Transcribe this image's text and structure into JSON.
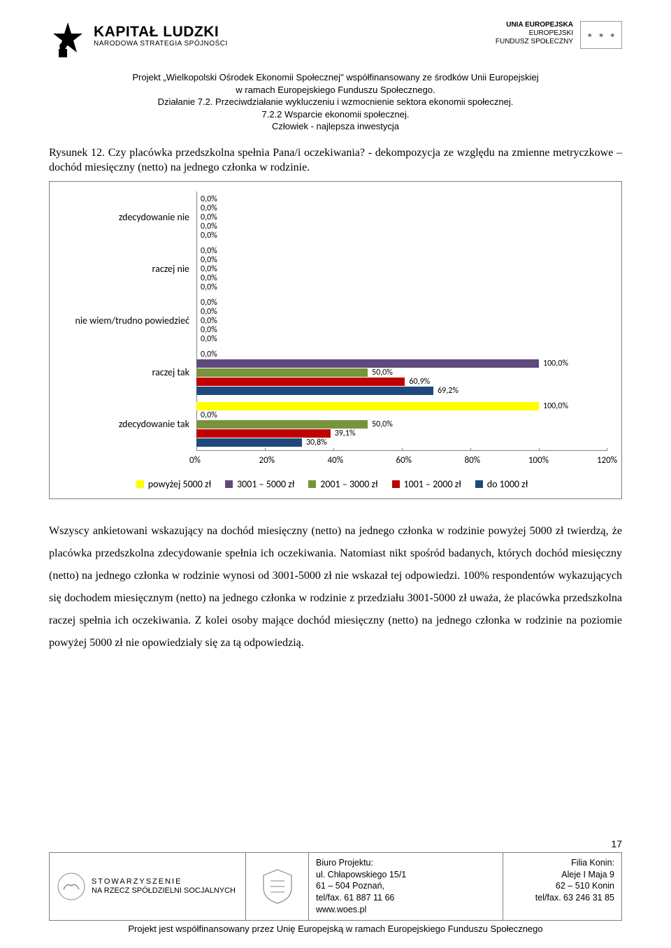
{
  "header": {
    "kl": "KAPITAŁ LUDZKI",
    "nss": "NARODOWA STRATEGIA SPÓJNOŚCI",
    "ue_line1": "UNIA EUROPEJSKA",
    "ue_line2": "EUROPEJSKI",
    "ue_line3": "FUNDUSZ SPOŁECZNY"
  },
  "project_lines": [
    "Projekt „Wielkopolski Ośrodek Ekonomii Społecznej\" współfinansowany ze środków Unii Europejskiej",
    "w ramach Europejskiego Funduszu Społecznego.",
    "Działanie 7.2. Przeciwdziałanie wykluczeniu i wzmocnienie sektora ekonomii społecznej.",
    "7.2.2 Wsparcie ekonomii społecznej.",
    "Człowiek - najlepsza inwestycja"
  ],
  "figcap": "Rysunek 12. Czy placówka przedszkolna spełnia Pana/i oczekiwania? - dekompozycja ze względu na zmienne metryczkowe – dochód miesięczny (netto) na jednego członka w rodzinie.",
  "chart": {
    "x_max_pct": 120,
    "series": [
      {
        "name": "powyżej 5000 zł",
        "color": "#ffff00"
      },
      {
        "name": "3001 – 5000 zł",
        "color": "#604a7b"
      },
      {
        "name": "2001 – 3000 zł",
        "color": "#77933c"
      },
      {
        "name": "1001 – 2000 zł",
        "color": "#c00000"
      },
      {
        "name": "do 1000 zł",
        "color": "#1f497d"
      }
    ],
    "categories": [
      {
        "label": "zdecydowanie nie",
        "bars": [
          {
            "value": 0.0,
            "label": "0,0%"
          },
          {
            "value": 0.0,
            "label": "0,0%"
          },
          {
            "value": 0.0,
            "label": "0,0%"
          },
          {
            "value": 0.0,
            "label": "0,0%"
          },
          {
            "value": 0.0,
            "label": "0,0%"
          }
        ]
      },
      {
        "label": "raczej nie",
        "bars": [
          {
            "value": 0.0,
            "label": "0,0%"
          },
          {
            "value": 0.0,
            "label": "0,0%"
          },
          {
            "value": 0.0,
            "label": "0,0%"
          },
          {
            "value": 0.0,
            "label": "0,0%"
          },
          {
            "value": 0.0,
            "label": "0,0%"
          }
        ]
      },
      {
        "label": "nie wiem/trudno powiedzieć",
        "bars": [
          {
            "value": 0.0,
            "label": "0,0%"
          },
          {
            "value": 0.0,
            "label": "0,0%"
          },
          {
            "value": 0.0,
            "label": "0,0%"
          },
          {
            "value": 0.0,
            "label": "0,0%"
          },
          {
            "value": 0.0,
            "label": "0,0%"
          }
        ]
      },
      {
        "label": "raczej tak",
        "bars": [
          {
            "value": 0.0,
            "label": "0,0%"
          },
          {
            "value": 100.0,
            "label": "100,0%"
          },
          {
            "value": 50.0,
            "label": "50,0%"
          },
          {
            "value": 60.9,
            "label": "60,9%"
          },
          {
            "value": 69.2,
            "label": "69,2%"
          }
        ]
      },
      {
        "label": "zdecydowanie tak",
        "bars": [
          {
            "value": 100.0,
            "label": "100,0%"
          },
          {
            "value": 0.0,
            "label": "0,0%"
          },
          {
            "value": 50.0,
            "label": "50,0%"
          },
          {
            "value": 39.1,
            "label": "39,1%"
          },
          {
            "value": 30.8,
            "label": "30,8%"
          }
        ]
      }
    ],
    "xticks": [
      "0%",
      "20%",
      "40%",
      "60%",
      "80%",
      "100%",
      "120%"
    ]
  },
  "body": "Wszyscy ankietowani wskazujący na dochód miesięczny (netto) na jednego członka w rodzinie powyżej 5000 zł twierdzą, że placówka przedszkolna zdecydowanie spełnia ich oczekiwania. Natomiast nikt spośród badanych, których dochód miesięczny (netto) na jednego członka w rodzinie wynosi od 3001-5000 zł nie wskazał tej odpowiedzi. 100% respondentów wykazujących się dochodem miesięcznym (netto) na jednego członka w rodzinie z przedziału 3001-5000 zł uważa, że placówka przedszkolna raczej spełnia ich oczekiwania. Z kolei osoby mające dochód miesięczny (netto) na jednego członka w rodzinie na poziomie powyżej 5000 zł nie opowiedziały się za tą odpowiedzią.",
  "page_number": "17",
  "footer": {
    "stow1": "STOWARZYSZENIE",
    "stow2": "NA RZECZ SPÓŁDZIELNI SOCJALNYCH",
    "biuro_title": "Biuro Projektu:",
    "biuro_l1": "ul. Chłapowskiego 15/1",
    "biuro_l2": "61 – 504 Poznań,",
    "biuro_l3": "tel/fax. 61 887 11 66",
    "biuro_l4": "www.woes.pl",
    "filia_title": "Filia Konin:",
    "filia_l1": "Aleje I Maja 9",
    "filia_l2": "62 – 510 Konin",
    "filia_l3": "tel/fax. 63 246 31 85",
    "note": "Projekt jest współfinansowany przez Unię Europejską w ramach Europejskiego Funduszu Społecznego"
  }
}
